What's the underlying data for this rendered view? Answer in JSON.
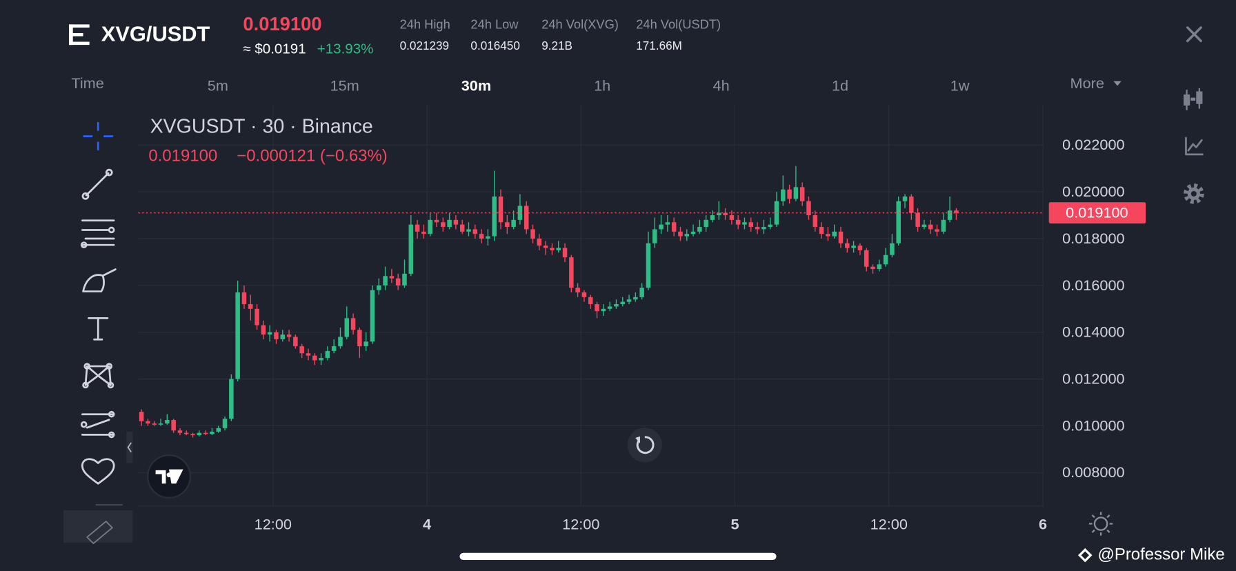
{
  "header": {
    "symbol": "XVG/USDT",
    "price": "0.019100",
    "approx": "≈ $0.0191",
    "change": "+13.93%",
    "stats": [
      {
        "label": "24h High",
        "value": "0.021239"
      },
      {
        "label": "24h Low",
        "value": "0.016450"
      },
      {
        "label": "24h Vol(XVG)",
        "value": "9.21B"
      },
      {
        "label": "24h Vol(USDT)",
        "value": "171.66M"
      }
    ]
  },
  "intervals": [
    "Time",
    "5m",
    "15m",
    "30m",
    "1h",
    "4h",
    "1d",
    "1w",
    "More"
  ],
  "watermark": "@Professor Mike",
  "chart_data": {
    "type": "candlestick",
    "title": "XVGUSDT · 30 · Binance",
    "legend": {
      "close": "0.019100",
      "change": "−0.000121 (−0.63%)"
    },
    "last_price": {
      "value": 0.0191,
      "label": "0.019100"
    },
    "ylim": [
      0.00659,
      0.02372
    ],
    "yticks": [
      {
        "value": 0.022,
        "label": "0.022000"
      },
      {
        "value": 0.02,
        "label": "0.020000"
      },
      {
        "value": 0.018,
        "label": "0.018000"
      },
      {
        "value": 0.016,
        "label": "0.016000"
      },
      {
        "value": 0.014,
        "label": "0.014000"
      },
      {
        "value": 0.012,
        "label": "0.012000"
      },
      {
        "value": 0.01,
        "label": "0.010000"
      },
      {
        "value": 0.008,
        "label": "0.008000"
      }
    ],
    "xlim": [
      -0.5,
      140.7
    ],
    "xticks": [
      {
        "value": 20.5,
        "label": "12:00"
      },
      {
        "value": 44.5,
        "label": "4"
      },
      {
        "value": 68.5,
        "label": "12:00"
      },
      {
        "value": 92.5,
        "label": "5"
      },
      {
        "value": 116.5,
        "label": "12:00"
      },
      {
        "value": 140.5,
        "label": "6"
      }
    ],
    "grid": true,
    "up_color": "#2ebd85",
    "down_color": "#f6465d",
    "ohlc": [
      [
        0.0106,
        0.0107,
        0.01,
        0.0102
      ],
      [
        0.0102,
        0.0103,
        0.01,
        0.0101
      ],
      [
        0.0101,
        0.0102,
        0.01,
        0.01005
      ],
      [
        0.01005,
        0.0103,
        0.01,
        0.0101
      ],
      [
        0.0101,
        0.0105,
        0.01005,
        0.01025
      ],
      [
        0.01025,
        0.0103,
        0.0097,
        0.0098
      ],
      [
        0.0098,
        0.0099,
        0.0096,
        0.0097
      ],
      [
        0.0097,
        0.0098,
        0.0096,
        0.00965
      ],
      [
        0.00965,
        0.0097,
        0.0095,
        0.0096
      ],
      [
        0.0096,
        0.0098,
        0.00955,
        0.0097
      ],
      [
        0.0097,
        0.0098,
        0.0096,
        0.00965
      ],
      [
        0.00965,
        0.0099,
        0.0096,
        0.00975
      ],
      [
        0.00975,
        0.01,
        0.0097,
        0.0099
      ],
      [
        0.0099,
        0.0104,
        0.0098,
        0.0103
      ],
      [
        0.0103,
        0.0122,
        0.0102,
        0.012
      ],
      [
        0.012,
        0.0162,
        0.0119,
        0.0157
      ],
      [
        0.0157,
        0.016,
        0.015,
        0.0152
      ],
      [
        0.0152,
        0.0156,
        0.0145,
        0.015
      ],
      [
        0.015,
        0.0152,
        0.0141,
        0.0143
      ],
      [
        0.0143,
        0.0145,
        0.0137,
        0.0139
      ],
      [
        0.0139,
        0.0143,
        0.0136,
        0.014
      ],
      [
        0.014,
        0.0141,
        0.0135,
        0.0137
      ],
      [
        0.0137,
        0.0141,
        0.0136,
        0.0139
      ],
      [
        0.0139,
        0.0141,
        0.0136,
        0.0138
      ],
      [
        0.0138,
        0.0139,
        0.0133,
        0.0134
      ],
      [
        0.0134,
        0.0135,
        0.0129,
        0.0131
      ],
      [
        0.0131,
        0.0133,
        0.0128,
        0.013
      ],
      [
        0.013,
        0.0131,
        0.0126,
        0.0128
      ],
      [
        0.0128,
        0.0131,
        0.0126,
        0.0129
      ],
      [
        0.0129,
        0.0134,
        0.0128,
        0.0132
      ],
      [
        0.0132,
        0.0137,
        0.0131,
        0.0134
      ],
      [
        0.0134,
        0.0142,
        0.0133,
        0.0138
      ],
      [
        0.0138,
        0.0151,
        0.0137,
        0.0146
      ],
      [
        0.0146,
        0.0148,
        0.0139,
        0.0141
      ],
      [
        0.0141,
        0.0142,
        0.0129,
        0.0134
      ],
      [
        0.0134,
        0.014,
        0.0132,
        0.0136
      ],
      [
        0.0136,
        0.016,
        0.0135,
        0.0158
      ],
      [
        0.0158,
        0.0163,
        0.0156,
        0.016
      ],
      [
        0.016,
        0.0168,
        0.0158,
        0.0164
      ],
      [
        0.0164,
        0.0167,
        0.0161,
        0.0163
      ],
      [
        0.0163,
        0.0165,
        0.0158,
        0.016
      ],
      [
        0.016,
        0.0171,
        0.0159,
        0.0165
      ],
      [
        0.0165,
        0.019,
        0.0164,
        0.0186
      ],
      [
        0.0186,
        0.0188,
        0.018,
        0.0183
      ],
      [
        0.0183,
        0.0186,
        0.018,
        0.0182
      ],
      [
        0.0182,
        0.0191,
        0.0181,
        0.0188
      ],
      [
        0.0188,
        0.0191,
        0.0185,
        0.0187
      ],
      [
        0.0187,
        0.0189,
        0.0183,
        0.0185
      ],
      [
        0.0185,
        0.0191,
        0.0184,
        0.0188
      ],
      [
        0.0188,
        0.019,
        0.0184,
        0.0186
      ],
      [
        0.0186,
        0.0188,
        0.0182,
        0.0183
      ],
      [
        0.0183,
        0.0187,
        0.0181,
        0.0184
      ],
      [
        0.0184,
        0.0186,
        0.018,
        0.0182
      ],
      [
        0.0182,
        0.0184,
        0.0178,
        0.018
      ],
      [
        0.018,
        0.0184,
        0.0177,
        0.0181
      ],
      [
        0.0181,
        0.0209,
        0.0179,
        0.0198
      ],
      [
        0.0198,
        0.0201,
        0.0184,
        0.0187
      ],
      [
        0.0187,
        0.019,
        0.0182,
        0.0185
      ],
      [
        0.0185,
        0.0192,
        0.0184,
        0.0188
      ],
      [
        0.0188,
        0.0199,
        0.0186,
        0.0194
      ],
      [
        0.0194,
        0.0196,
        0.0182,
        0.0184
      ],
      [
        0.0184,
        0.0186,
        0.0178,
        0.018
      ],
      [
        0.018,
        0.0182,
        0.0175,
        0.0177
      ],
      [
        0.0177,
        0.0179,
        0.0173,
        0.0176
      ],
      [
        0.0176,
        0.0178,
        0.0173,
        0.0175
      ],
      [
        0.0175,
        0.0179,
        0.0174,
        0.0176
      ],
      [
        0.0176,
        0.0178,
        0.017,
        0.0172
      ],
      [
        0.0172,
        0.0173,
        0.0157,
        0.0159
      ],
      [
        0.0159,
        0.0161,
        0.0155,
        0.0157
      ],
      [
        0.0157,
        0.0158,
        0.0153,
        0.0155
      ],
      [
        0.0155,
        0.0156,
        0.015,
        0.0152
      ],
      [
        0.0152,
        0.0153,
        0.0146,
        0.0149
      ],
      [
        0.0149,
        0.0152,
        0.0147,
        0.015
      ],
      [
        0.015,
        0.0153,
        0.0149,
        0.0151
      ],
      [
        0.0151,
        0.0154,
        0.015,
        0.0152
      ],
      [
        0.0152,
        0.0155,
        0.0151,
        0.0153
      ],
      [
        0.0153,
        0.0156,
        0.0152,
        0.0154
      ],
      [
        0.0154,
        0.0157,
        0.0153,
        0.0155
      ],
      [
        0.0155,
        0.0161,
        0.0154,
        0.0159
      ],
      [
        0.0159,
        0.0183,
        0.0158,
        0.0178
      ],
      [
        0.0178,
        0.0189,
        0.0176,
        0.0184
      ],
      [
        0.0184,
        0.019,
        0.0182,
        0.0186
      ],
      [
        0.0186,
        0.019,
        0.0183,
        0.0187
      ],
      [
        0.0187,
        0.0189,
        0.0181,
        0.0183
      ],
      [
        0.0183,
        0.0185,
        0.0179,
        0.0181
      ],
      [
        0.0181,
        0.0184,
        0.0179,
        0.0182
      ],
      [
        0.0182,
        0.0186,
        0.0181,
        0.0183
      ],
      [
        0.0183,
        0.0188,
        0.0182,
        0.0185
      ],
      [
        0.0185,
        0.019,
        0.0183,
        0.0188
      ],
      [
        0.0188,
        0.0192,
        0.0187,
        0.019
      ],
      [
        0.019,
        0.0196,
        0.0188,
        0.0191
      ],
      [
        0.0191,
        0.0193,
        0.0188,
        0.019
      ],
      [
        0.019,
        0.0192,
        0.0186,
        0.0188
      ],
      [
        0.0188,
        0.019,
        0.0184,
        0.0186
      ],
      [
        0.0186,
        0.0189,
        0.0184,
        0.0187
      ],
      [
        0.0187,
        0.0189,
        0.0183,
        0.0185
      ],
      [
        0.0185,
        0.0187,
        0.0182,
        0.0184
      ],
      [
        0.0184,
        0.0188,
        0.0182,
        0.0185
      ],
      [
        0.0185,
        0.0189,
        0.0184,
        0.0186
      ],
      [
        0.0186,
        0.02,
        0.0185,
        0.0196
      ],
      [
        0.0196,
        0.0207,
        0.0194,
        0.0201
      ],
      [
        0.0201,
        0.0203,
        0.0195,
        0.0197
      ],
      [
        0.0197,
        0.0211,
        0.0196,
        0.0202
      ],
      [
        0.0202,
        0.0204,
        0.0194,
        0.0196
      ],
      [
        0.0196,
        0.0198,
        0.0188,
        0.019
      ],
      [
        0.019,
        0.0192,
        0.0183,
        0.0185
      ],
      [
        0.0185,
        0.0187,
        0.018,
        0.0182
      ],
      [
        0.0182,
        0.0185,
        0.0179,
        0.0181
      ],
      [
        0.0181,
        0.0186,
        0.018,
        0.0183
      ],
      [
        0.0183,
        0.0185,
        0.0176,
        0.0178
      ],
      [
        0.0178,
        0.018,
        0.0174,
        0.0176
      ],
      [
        0.0176,
        0.0179,
        0.0174,
        0.0177
      ],
      [
        0.0177,
        0.0178,
        0.0173,
        0.0175
      ],
      [
        0.0175,
        0.0176,
        0.0166,
        0.0168
      ],
      [
        0.0168,
        0.0169,
        0.0165,
        0.0167
      ],
      [
        0.0167,
        0.0171,
        0.0166,
        0.0169
      ],
      [
        0.0169,
        0.0176,
        0.0168,
        0.0173
      ],
      [
        0.0173,
        0.0182,
        0.0172,
        0.0178
      ],
      [
        0.0178,
        0.0198,
        0.0177,
        0.0196
      ],
      [
        0.0196,
        0.0199,
        0.0193,
        0.0198
      ],
      [
        0.0198,
        0.0199,
        0.0188,
        0.0191
      ],
      [
        0.0191,
        0.0193,
        0.0183,
        0.0185
      ],
      [
        0.0185,
        0.0188,
        0.0184,
        0.0186
      ],
      [
        0.0186,
        0.0188,
        0.0182,
        0.0184
      ],
      [
        0.0184,
        0.0186,
        0.0181,
        0.0183
      ],
      [
        0.0183,
        0.0191,
        0.0182,
        0.0188
      ],
      [
        0.0188,
        0.0198,
        0.0187,
        0.0192
      ],
      [
        0.0192,
        0.0193,
        0.0188,
        0.0191
      ]
    ]
  }
}
